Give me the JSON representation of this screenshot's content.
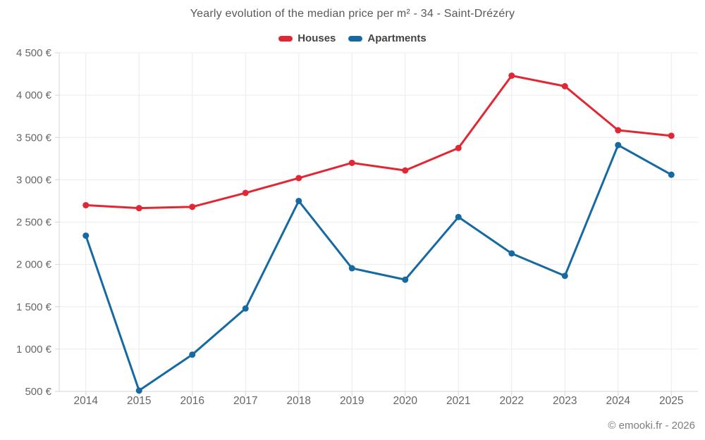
{
  "chart_data": {
    "type": "line",
    "title": "Yearly evolution of the median price per m² - 34 - Saint-Drézéry",
    "footer": "© emooki.fr - 2026",
    "categories": [
      "2014",
      "2015",
      "2016",
      "2017",
      "2018",
      "2019",
      "2020",
      "2021",
      "2022",
      "2023",
      "2024",
      "2025"
    ],
    "series": [
      {
        "name": "Houses",
        "color": "#e12734",
        "values": [
          2700,
          2665,
          2680,
          2845,
          3020,
          3200,
          3110,
          3375,
          4230,
          4105,
          3585,
          3520
        ]
      },
      {
        "name": "Apartments",
        "color": "#1769a2",
        "values": [
          2340,
          510,
          935,
          1480,
          2750,
          1955,
          1820,
          2560,
          2130,
          1865,
          3410,
          3060
        ]
      }
    ],
    "xlabel": "",
    "ylabel": "",
    "ylim": [
      500,
      4500
    ],
    "ytick_step": 500,
    "ytick_labels": [
      "500 €",
      "1 000 €",
      "1 500 €",
      "2 000 €",
      "2 500 €",
      "3 000 €",
      "3 500 €",
      "4 000 €",
      "4 500 €"
    ],
    "currency_suffix": " €",
    "legend_position": "top",
    "grid": true
  },
  "colors": {
    "background": "#ffffff",
    "title_text": "#595959",
    "legend_text": "#444444",
    "axis_label_text": "#666666",
    "gridline": "#ececec",
    "axis_line": "#d6d6d6",
    "credit_text": "#7d7d7d"
  }
}
